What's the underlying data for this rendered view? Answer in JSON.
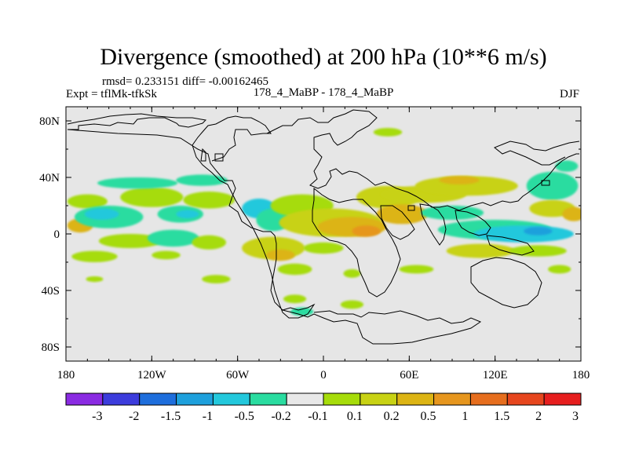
{
  "chart_data": {
    "type": "heatmap",
    "title": "Divergence (smoothed) at 200 hPa (10**6 m/s)",
    "stats": "rmsd= 0.233151 diff= -0.00162465",
    "experiment": "Expt = tflMk-tfkSk",
    "comparison": "178_4_MaBP - 178_4_MaBP",
    "season": "DJF",
    "x_range": [
      -180,
      180
    ],
    "y_range": [
      -90,
      90
    ],
    "x_ticks": [
      {
        "value": -180,
        "label": "180"
      },
      {
        "value": -120,
        "label": "120W"
      },
      {
        "value": -60,
        "label": "60W"
      },
      {
        "value": 0,
        "label": "0"
      },
      {
        "value": 60,
        "label": "60E"
      },
      {
        "value": 120,
        "label": "120E"
      },
      {
        "value": 180,
        "label": "180"
      }
    ],
    "y_ticks": [
      {
        "value": 80,
        "label": "80N"
      },
      {
        "value": 40,
        "label": "40N"
      },
      {
        "value": 0,
        "label": "0"
      },
      {
        "value": -40,
        "label": "40S"
      },
      {
        "value": -80,
        "label": "80S"
      }
    ],
    "colorbar": {
      "colors": [
        "#8a2be2",
        "#3c3cdc",
        "#1e6edc",
        "#1ea0dc",
        "#23c8dc",
        "#2adca0",
        "#e8e8e8",
        "#a6dc0a",
        "#c8d214",
        "#dcb414",
        "#e6961e",
        "#e66e1e",
        "#e6461e",
        "#e61e1e"
      ],
      "labels": [
        "-3",
        "-2",
        "-1.5",
        "-1",
        "-0.5",
        "-0.2",
        "-0.1",
        "0.1",
        "0.2",
        "0.5",
        "1",
        "1.5",
        "2",
        "3"
      ]
    },
    "background_color": "#e6e6e6",
    "features": [
      {
        "lon": -165,
        "lat": 23,
        "rx": 14,
        "ry": 5,
        "level": 7
      },
      {
        "lon": -170,
        "lat": 6,
        "rx": 9,
        "ry": 5,
        "level": 9
      },
      {
        "lon": -150,
        "lat": 12,
        "rx": 24,
        "ry": 8,
        "level": 5
      },
      {
        "lon": -155,
        "lat": 14,
        "rx": 12,
        "ry": 4,
        "level": 4
      },
      {
        "lon": -120,
        "lat": 26,
        "rx": 22,
        "ry": 7,
        "level": 7
      },
      {
        "lon": -100,
        "lat": 14,
        "rx": 16,
        "ry": 6,
        "level": 5
      },
      {
        "lon": -95,
        "lat": 14,
        "rx": 8,
        "ry": 3,
        "level": 4
      },
      {
        "lon": -130,
        "lat": 36,
        "rx": 28,
        "ry": 4,
        "level": 5
      },
      {
        "lon": -85,
        "lat": 38,
        "rx": 18,
        "ry": 4,
        "level": 5
      },
      {
        "lon": -80,
        "lat": 24,
        "rx": 18,
        "ry": 6,
        "level": 7
      },
      {
        "lon": -135,
        "lat": -5,
        "rx": 22,
        "ry": 5,
        "level": 7
      },
      {
        "lon": -105,
        "lat": -3,
        "rx": 18,
        "ry": 6,
        "level": 5
      },
      {
        "lon": -160,
        "lat": -16,
        "rx": 16,
        "ry": 4,
        "level": 7
      },
      {
        "lon": -110,
        "lat": -15,
        "rx": 10,
        "ry": 3,
        "level": 7
      },
      {
        "lon": -80,
        "lat": -6,
        "rx": 12,
        "ry": 5,
        "level": 7
      },
      {
        "lon": -45,
        "lat": 18,
        "rx": 12,
        "ry": 7,
        "level": 4
      },
      {
        "lon": -35,
        "lat": 10,
        "rx": 12,
        "ry": 8,
        "level": 5
      },
      {
        "lon": -15,
        "lat": 20,
        "rx": 22,
        "ry": 8,
        "level": 7
      },
      {
        "lon": 5,
        "lat": 8,
        "rx": 36,
        "ry": 10,
        "level": 8
      },
      {
        "lon": 20,
        "lat": 5,
        "rx": 24,
        "ry": 7,
        "level": 9
      },
      {
        "lon": 30,
        "lat": 2,
        "rx": 10,
        "ry": 4,
        "level": 10
      },
      {
        "lon": -35,
        "lat": -10,
        "rx": 22,
        "ry": 8,
        "level": 8
      },
      {
        "lon": -30,
        "lat": -15,
        "rx": 10,
        "ry": 4,
        "level": 9
      },
      {
        "lon": 0,
        "lat": -10,
        "rx": 14,
        "ry": 4,
        "level": 7
      },
      {
        "lon": -20,
        "lat": -25,
        "rx": 12,
        "ry": 4,
        "level": 7
      },
      {
        "lon": 45,
        "lat": 26,
        "rx": 22,
        "ry": 8,
        "level": 8
      },
      {
        "lon": 55,
        "lat": 14,
        "rx": 18,
        "ry": 7,
        "level": 9
      },
      {
        "lon": 70,
        "lat": 28,
        "rx": 30,
        "ry": 6,
        "level": 8
      },
      {
        "lon": 100,
        "lat": 34,
        "rx": 36,
        "ry": 7,
        "level": 8
      },
      {
        "lon": 95,
        "lat": 38,
        "rx": 14,
        "ry": 3,
        "level": 9
      },
      {
        "lon": 90,
        "lat": 15,
        "rx": 22,
        "ry": 5,
        "level": 5
      },
      {
        "lon": 120,
        "lat": 3,
        "rx": 40,
        "ry": 7,
        "level": 5
      },
      {
        "lon": 140,
        "lat": 0,
        "rx": 35,
        "ry": 6,
        "level": 4
      },
      {
        "lon": 150,
        "lat": 2,
        "rx": 10,
        "ry": 3,
        "level": 3
      },
      {
        "lon": 110,
        "lat": -12,
        "rx": 24,
        "ry": 5,
        "level": 8
      },
      {
        "lon": 150,
        "lat": -12,
        "rx": 20,
        "ry": 4,
        "level": 7
      },
      {
        "lon": 160,
        "lat": 34,
        "rx": 18,
        "ry": 10,
        "level": 5
      },
      {
        "lon": 160,
        "lat": 18,
        "rx": 16,
        "ry": 6,
        "level": 8
      },
      {
        "lon": 175,
        "lat": 14,
        "rx": 8,
        "ry": 5,
        "level": 9
      },
      {
        "lon": 170,
        "lat": 48,
        "rx": 8,
        "ry": 4,
        "level": 5
      },
      {
        "lon": 45,
        "lat": 72,
        "rx": 10,
        "ry": 3,
        "level": 7
      },
      {
        "lon": 165,
        "lat": -25,
        "rx": 8,
        "ry": 3,
        "level": 7
      },
      {
        "lon": 65,
        "lat": -25,
        "rx": 12,
        "ry": 3,
        "level": 7
      },
      {
        "lon": 20,
        "lat": -28,
        "rx": 6,
        "ry": 3,
        "level": 7
      },
      {
        "lon": -160,
        "lat": -32,
        "rx": 6,
        "ry": 2,
        "level": 7
      },
      {
        "lon": -75,
        "lat": -32,
        "rx": 10,
        "ry": 3,
        "level": 7
      },
      {
        "lon": 20,
        "lat": -50,
        "rx": 8,
        "ry": 3,
        "level": 7
      },
      {
        "lon": -15,
        "lat": -55,
        "rx": 8,
        "ry": 3,
        "level": 5
      },
      {
        "lon": -20,
        "lat": -46,
        "rx": 8,
        "ry": 3,
        "level": 7
      }
    ]
  }
}
